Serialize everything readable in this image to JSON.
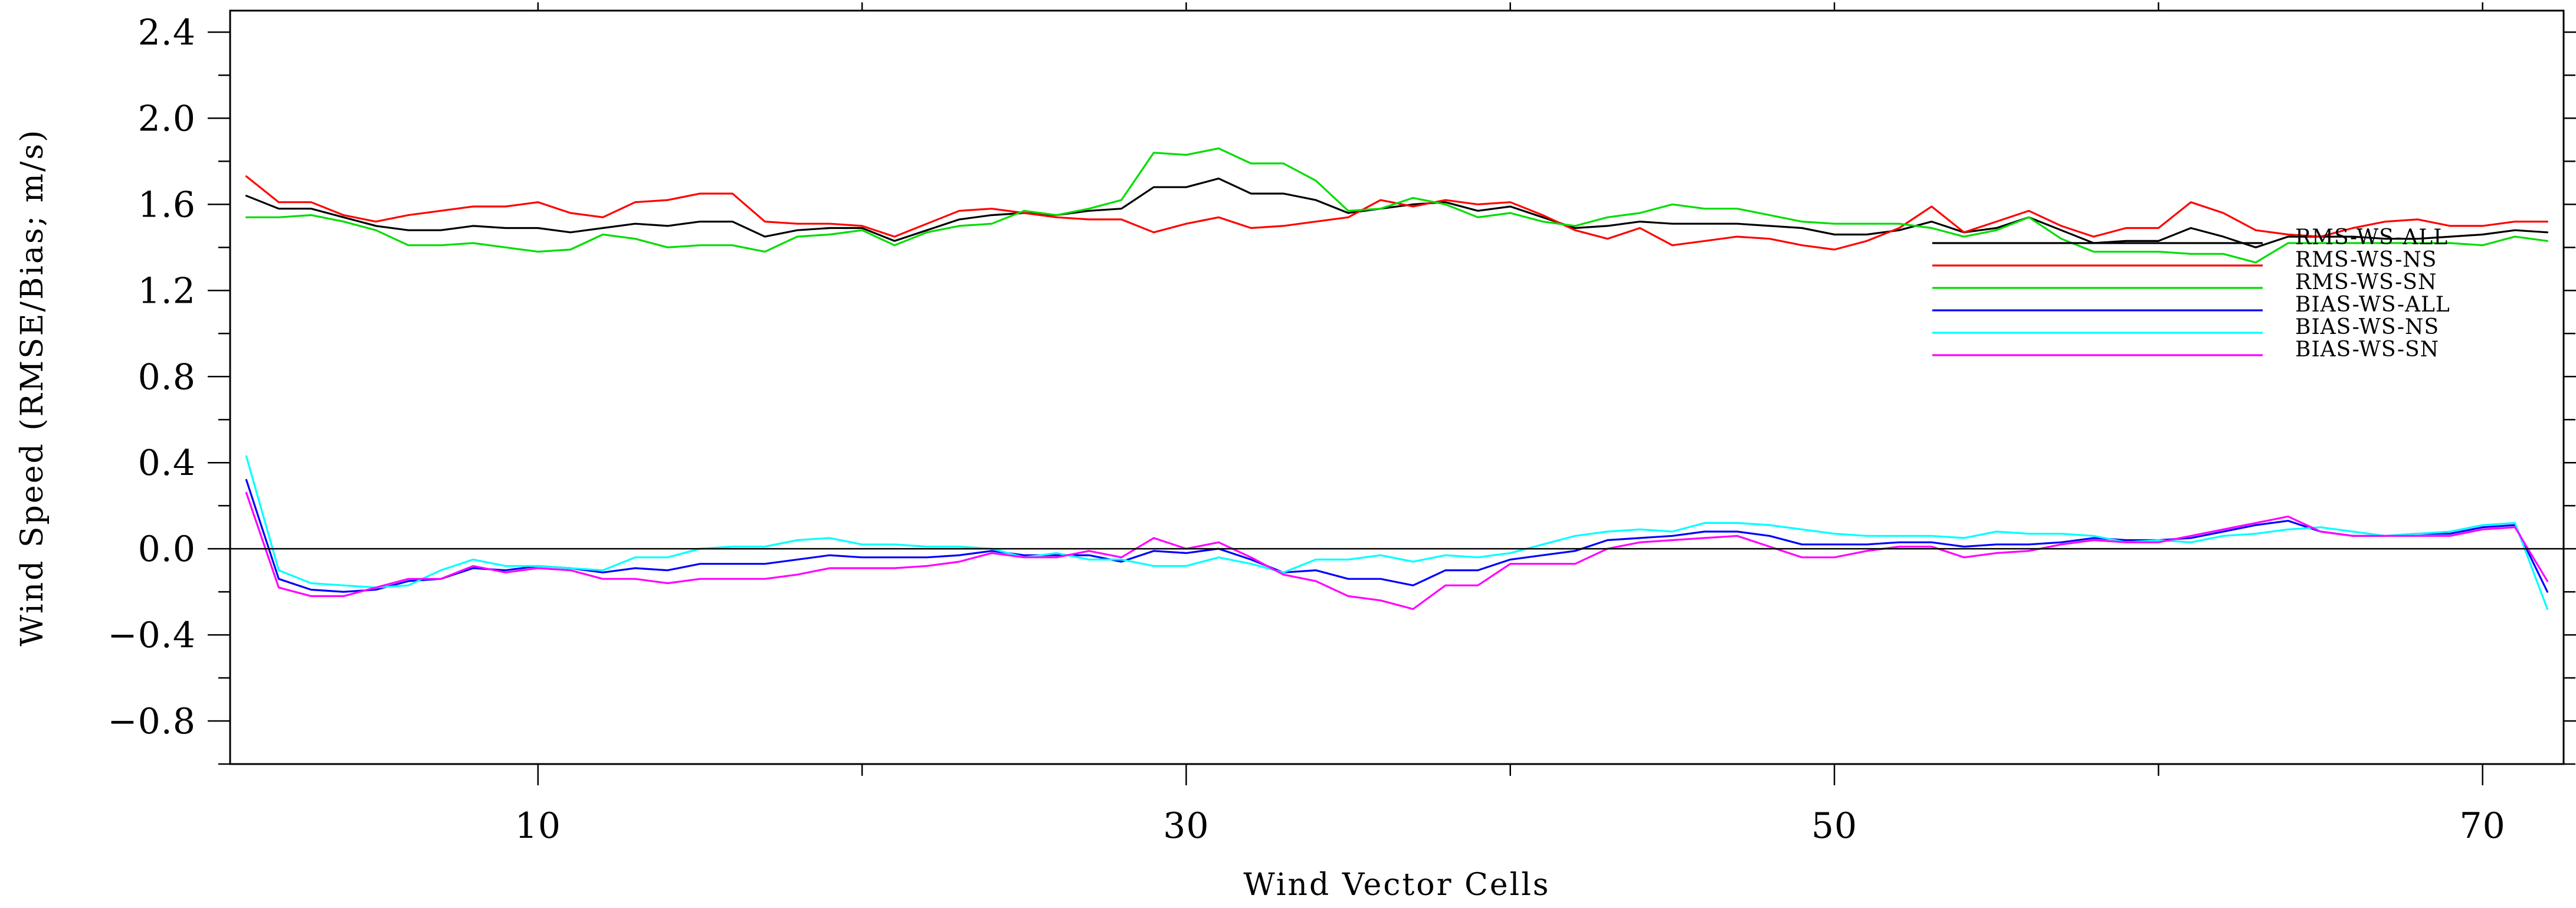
{
  "chart_data": {
    "type": "line",
    "title": "",
    "xlabel": "Wind Vector Cells",
    "ylabel": "Wind Speed (RMSE/Bias; m/s)",
    "xlim": [
      1,
      72
    ],
    "ylim": [
      -1.0,
      2.5
    ],
    "xticks": [
      10,
      30,
      50,
      70
    ],
    "xtick_labels": [
      "10",
      "30",
      "50",
      "70"
    ],
    "yticks": [
      -0.8,
      -0.4,
      0.0,
      0.4,
      0.8,
      1.2,
      1.6,
      2.0,
      2.4
    ],
    "ytick_labels": [
      "−0.8",
      "−0.4",
      "0.0",
      "0.4",
      "0.8",
      "1.2",
      "1.6",
      "2.0",
      "2.4"
    ],
    "zero_line": true,
    "grid": false,
    "legend_position": "right, inside plot",
    "x": [
      1,
      2,
      3,
      4,
      5,
      6,
      7,
      8,
      9,
      10,
      11,
      12,
      13,
      14,
      15,
      16,
      17,
      18,
      19,
      20,
      21,
      22,
      23,
      24,
      25,
      26,
      27,
      28,
      29,
      30,
      31,
      32,
      33,
      34,
      35,
      36,
      37,
      38,
      39,
      40,
      41,
      42,
      43,
      44,
      45,
      46,
      47,
      48,
      49,
      50,
      51,
      52,
      53,
      54,
      55,
      56,
      57,
      58,
      59,
      60,
      61,
      62,
      63,
      64,
      65,
      66,
      67,
      68,
      69,
      70,
      71,
      72
    ],
    "series": [
      {
        "name": "RMS-WS-ALL",
        "color": "#000000",
        "values": [
          1.64,
          1.58,
          1.58,
          1.54,
          1.5,
          1.48,
          1.48,
          1.5,
          1.49,
          1.49,
          1.47,
          1.49,
          1.51,
          1.5,
          1.52,
          1.52,
          1.45,
          1.48,
          1.49,
          1.49,
          1.43,
          1.48,
          1.53,
          1.55,
          1.56,
          1.55,
          1.57,
          1.58,
          1.68,
          1.68,
          1.72,
          1.65,
          1.65,
          1.62,
          1.56,
          1.58,
          1.6,
          1.61,
          1.57,
          1.59,
          1.54,
          1.49,
          1.5,
          1.52,
          1.51,
          1.51,
          1.51,
          1.5,
          1.49,
          1.46,
          1.46,
          1.48,
          1.52,
          1.47,
          1.49,
          1.54,
          1.48,
          1.42,
          1.43,
          1.43,
          1.49,
          1.45,
          1.4,
          1.45,
          1.45,
          1.45,
          1.44,
          1.44,
          1.45,
          1.46,
          1.48,
          1.47
        ]
      },
      {
        "name": "RMS-WS-NS",
        "color": "#ff0000",
        "values": [
          1.73,
          1.61,
          1.61,
          1.55,
          1.52,
          1.55,
          1.57,
          1.59,
          1.59,
          1.61,
          1.56,
          1.54,
          1.61,
          1.62,
          1.65,
          1.65,
          1.52,
          1.51,
          1.51,
          1.5,
          1.45,
          1.51,
          1.57,
          1.58,
          1.56,
          1.54,
          1.53,
          1.53,
          1.47,
          1.51,
          1.54,
          1.49,
          1.5,
          1.52,
          1.54,
          1.62,
          1.59,
          1.62,
          1.6,
          1.61,
          1.55,
          1.48,
          1.44,
          1.49,
          1.41,
          1.43,
          1.45,
          1.44,
          1.41,
          1.39,
          1.43,
          1.49,
          1.59,
          1.47,
          1.52,
          1.57,
          1.5,
          1.45,
          1.49,
          1.49,
          1.61,
          1.56,
          1.48,
          1.46,
          1.45,
          1.49,
          1.52,
          1.53,
          1.5,
          1.5,
          1.52,
          1.52
        ]
      },
      {
        "name": "RMS-WS-SN",
        "color": "#00dd00",
        "values": [
          1.54,
          1.54,
          1.55,
          1.52,
          1.48,
          1.41,
          1.41,
          1.42,
          1.4,
          1.38,
          1.39,
          1.46,
          1.44,
          1.4,
          1.41,
          1.41,
          1.38,
          1.45,
          1.46,
          1.48,
          1.41,
          1.47,
          1.5,
          1.51,
          1.57,
          1.55,
          1.58,
          1.62,
          1.84,
          1.83,
          1.86,
          1.79,
          1.79,
          1.71,
          1.57,
          1.58,
          1.63,
          1.6,
          1.54,
          1.56,
          1.52,
          1.5,
          1.54,
          1.56,
          1.6,
          1.58,
          1.58,
          1.55,
          1.52,
          1.51,
          1.51,
          1.51,
          1.49,
          1.45,
          1.48,
          1.54,
          1.44,
          1.38,
          1.38,
          1.38,
          1.37,
          1.37,
          1.33,
          1.42,
          1.42,
          1.42,
          1.42,
          1.42,
          1.42,
          1.41,
          1.45,
          1.43
        ]
      },
      {
        "name": "BIAS-WS-ALL",
        "color": "#0000ff",
        "values": [
          0.32,
          -0.14,
          -0.19,
          -0.2,
          -0.19,
          -0.15,
          -0.14,
          -0.09,
          -0.1,
          -0.08,
          -0.09,
          -0.11,
          -0.09,
          -0.1,
          -0.07,
          -0.07,
          -0.07,
          -0.05,
          -0.03,
          -0.04,
          -0.04,
          -0.04,
          -0.03,
          -0.01,
          -0.03,
          -0.03,
          -0.03,
          -0.06,
          -0.01,
          -0.02,
          0.0,
          -0.05,
          -0.11,
          -0.1,
          -0.14,
          -0.14,
          -0.17,
          -0.1,
          -0.1,
          -0.05,
          -0.03,
          -0.01,
          0.04,
          0.05,
          0.06,
          0.08,
          0.08,
          0.06,
          0.02,
          0.02,
          0.02,
          0.03,
          0.03,
          0.01,
          0.02,
          0.02,
          0.03,
          0.05,
          0.04,
          0.04,
          0.05,
          0.08,
          0.11,
          0.13,
          0.08,
          0.06,
          0.06,
          0.07,
          0.07,
          0.1,
          0.11,
          -0.2
        ]
      },
      {
        "name": "BIAS-WS-NS",
        "color": "#00ffff",
        "values": [
          0.43,
          -0.1,
          -0.16,
          -0.17,
          -0.18,
          -0.17,
          -0.1,
          -0.05,
          -0.08,
          -0.08,
          -0.09,
          -0.1,
          -0.04,
          -0.04,
          0.0,
          0.01,
          0.01,
          0.04,
          0.05,
          0.02,
          0.02,
          0.01,
          0.01,
          0.0,
          -0.04,
          -0.02,
          -0.05,
          -0.05,
          -0.08,
          -0.08,
          -0.04,
          -0.07,
          -0.11,
          -0.05,
          -0.05,
          -0.03,
          -0.06,
          -0.03,
          -0.04,
          -0.02,
          0.02,
          0.06,
          0.08,
          0.09,
          0.08,
          0.12,
          0.12,
          0.11,
          0.09,
          0.07,
          0.06,
          0.06,
          0.06,
          0.05,
          0.08,
          0.07,
          0.07,
          0.06,
          0.03,
          0.04,
          0.03,
          0.06,
          0.07,
          0.09,
          0.1,
          0.08,
          0.06,
          0.07,
          0.08,
          0.11,
          0.12,
          -0.28
        ]
      },
      {
        "name": "BIAS-WS-SN",
        "color": "#ff00ff",
        "values": [
          0.26,
          -0.18,
          -0.22,
          -0.22,
          -0.18,
          -0.14,
          -0.14,
          -0.08,
          -0.11,
          -0.09,
          -0.1,
          -0.14,
          -0.14,
          -0.16,
          -0.14,
          -0.14,
          -0.14,
          -0.12,
          -0.09,
          -0.09,
          -0.09,
          -0.08,
          -0.06,
          -0.02,
          -0.04,
          -0.04,
          -0.01,
          -0.04,
          0.05,
          0.0,
          0.03,
          -0.04,
          -0.12,
          -0.15,
          -0.22,
          -0.24,
          -0.28,
          -0.17,
          -0.17,
          -0.07,
          -0.07,
          -0.07,
          0.0,
          0.03,
          0.04,
          0.05,
          0.06,
          0.01,
          -0.04,
          -0.04,
          -0.01,
          0.01,
          0.01,
          -0.04,
          -0.02,
          -0.01,
          0.02,
          0.04,
          0.03,
          0.03,
          0.06,
          0.09,
          0.12,
          0.15,
          0.08,
          0.06,
          0.06,
          0.06,
          0.06,
          0.09,
          0.1,
          -0.15
        ]
      }
    ]
  }
}
